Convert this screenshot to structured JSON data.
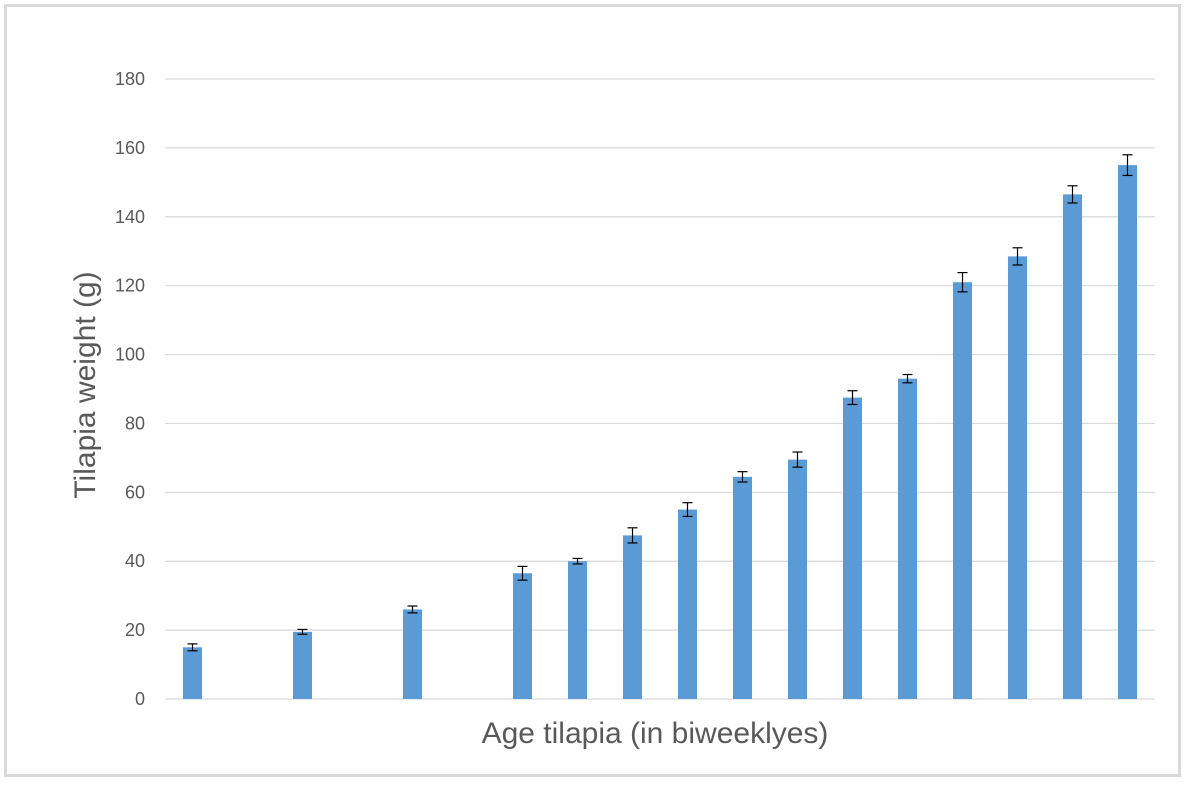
{
  "chart_data": {
    "type": "bar",
    "title": "",
    "xlabel": "Age tilapia (in biweeklyes)",
    "ylabel": "Tilapia weight  (g)",
    "ylim": [
      0,
      180
    ],
    "yticks": [
      0,
      20,
      40,
      60,
      80,
      100,
      120,
      140,
      160,
      180
    ],
    "grid": true,
    "legend": "none",
    "bar_color": "#5b9bd5",
    "gridline_color": "#d9d9d9",
    "x": [
      1,
      3,
      5,
      7,
      8,
      9,
      10,
      11,
      12,
      13,
      14,
      15,
      16,
      17,
      18
    ],
    "x_range": [
      0.5,
      18.5
    ],
    "values": [
      15,
      19.5,
      26,
      36.5,
      40,
      47.5,
      55,
      64.5,
      69.5,
      87.5,
      93,
      121,
      128.5,
      146.5,
      155
    ],
    "errors": [
      1,
      0.7,
      1,
      2,
      0.8,
      2.2,
      2,
      1.5,
      2.2,
      2,
      1.2,
      2.8,
      2.5,
      2.5,
      3
    ]
  }
}
